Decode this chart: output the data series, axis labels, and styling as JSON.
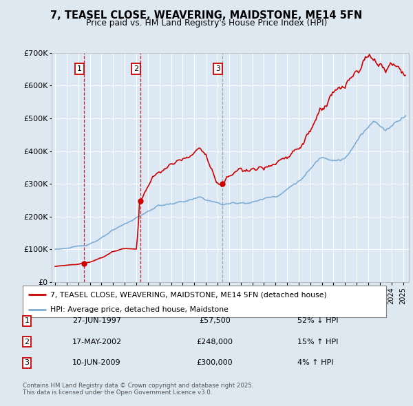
{
  "title_line1": "7, TEASEL CLOSE, WEAVERING, MAIDSTONE, ME14 5FN",
  "title_line2": "Price paid vs. HM Land Registry's House Price Index (HPI)",
  "legend_label_red": "7, TEASEL CLOSE, WEAVERING, MAIDSTONE, ME14 5FN (detached house)",
  "legend_label_blue": "HPI: Average price, detached house, Maidstone",
  "footer": "Contains HM Land Registry data © Crown copyright and database right 2025.\nThis data is licensed under the Open Government Licence v3.0.",
  "transactions": [
    {
      "num": 1,
      "date": "27-JUN-1997",
      "price": "£57,500",
      "hpi": "52% ↓ HPI"
    },
    {
      "num": 2,
      "date": "17-MAY-2002",
      "price": "£248,000",
      "hpi": "15% ↑ HPI"
    },
    {
      "num": 3,
      "date": "10-JUN-2009",
      "price": "£300,000",
      "hpi": "4% ↑ HPI"
    }
  ],
  "transaction_dates": [
    1997.49,
    2002.38,
    2009.44
  ],
  "transaction_prices": [
    57500,
    248000,
    300000
  ],
  "vline_colors": [
    "#cc0000",
    "#cc0000",
    "#888888"
  ],
  "vline_styles": [
    "--",
    "--",
    "--"
  ],
  "red_color": "#cc0000",
  "blue_color": "#7eadd4",
  "background_color": "#dde8f0",
  "plot_bg_color": "#dce9f5",
  "grid_color": "#ffffff",
  "ylim": [
    0,
    700000
  ],
  "xlim_start": 1994.7,
  "xlim_end": 2025.5,
  "yticks": [
    0,
    100000,
    200000,
    300000,
    400000,
    500000,
    600000,
    700000
  ],
  "ylabels": [
    "£0",
    "£100K",
    "£200K",
    "£300K",
    "£400K",
    "£500K",
    "£600K",
    "£700K"
  ],
  "fig_width": 6.0,
  "fig_height": 5.9
}
